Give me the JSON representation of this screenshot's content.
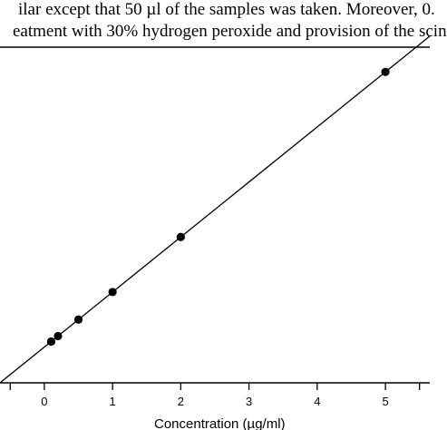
{
  "caption": {
    "line1": "ilar except that 50 µl of the samples was taken. Moreover, 0.",
    "line2": "eatment with 30% hydrogen peroxide and provision of the scin"
  },
  "chart_data": {
    "type": "scatter",
    "title": "",
    "xlabel": "Concentration (µg/ml)",
    "ylabel": "",
    "xlim": [
      -0.65,
      5.65
    ],
    "x_ticks": [
      0,
      1,
      2,
      3,
      4,
      5
    ],
    "series": [
      {
        "points": [
          {
            "x": 0.1,
            "y": 0.1
          },
          {
            "x": 0.2,
            "y": 0.2
          },
          {
            "x": 0.5,
            "y": 0.5
          },
          {
            "x": 1.0,
            "y": 1.0
          },
          {
            "x": 2.0,
            "y": 2.0
          },
          {
            "x": 5.0,
            "y": 5.0
          }
        ]
      }
    ],
    "fit_line": {
      "slope": 1.0,
      "intercept": 0.0
    },
    "ylim": [
      -0.65,
      5.45
    ],
    "grid": false,
    "colors": {
      "marker": "#000000",
      "line": "#000000",
      "axis": "#000000"
    }
  }
}
